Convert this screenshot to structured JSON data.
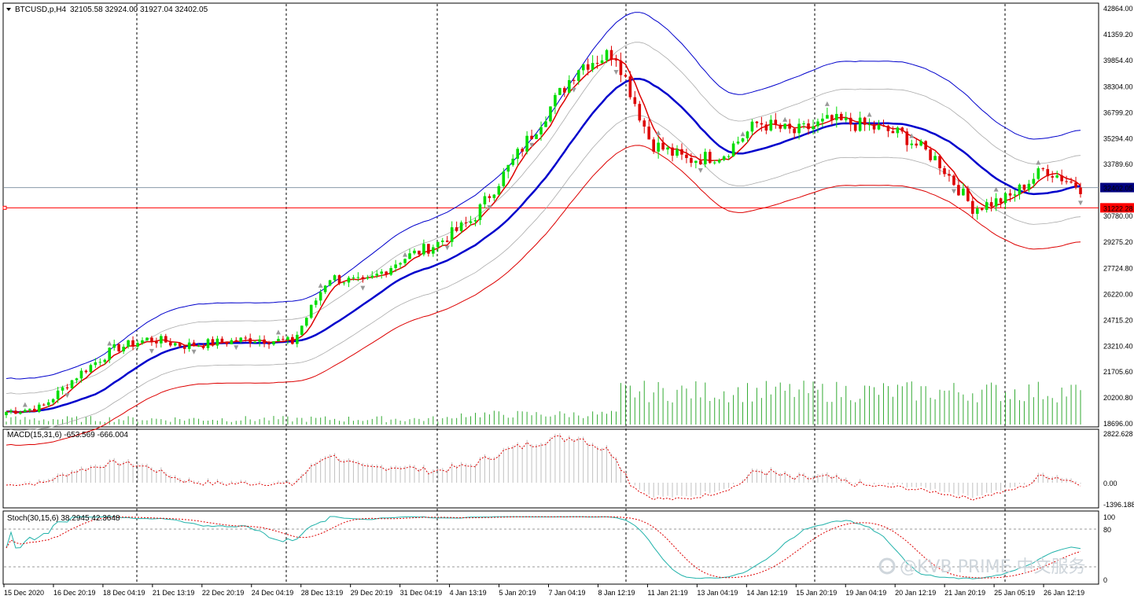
{
  "header": {
    "symbol_label": "BTCUSD,p,H4",
    "ohlc": "32105.58 32924.00 31927.04 32402.05"
  },
  "indicators": {
    "macd_label": "MACD(15,31,6) -653.569 -666.004",
    "stoch_label": "Stoch(30,15,6) 38.2945 42.3648"
  },
  "watermark": "@KVB PRIME 中文服务",
  "colors": {
    "bull_candle": "#00dd00",
    "bear_candle": "#dd0000",
    "ma_fast": "#dd0000",
    "ma_slow": "#0000cc",
    "macd_signal": "#dd0000",
    "stoch_main": "#20b2aa",
    "stoch_signal": "#dd0000",
    "volume": "#33aa33",
    "current_price_line": "#8899aa",
    "level_line": "#ff0000"
  },
  "chart_data": [
    {
      "type": "candlestick",
      "title": "BTCUSD,p,H4",
      "price_axis_ticks": [
        "42864.00",
        "41359.20",
        "39854.40",
        "38304.00",
        "36799.20",
        "35294.40",
        "33789.60",
        "32402.05",
        "31222.28",
        "30780.00",
        "29275.20",
        "27724.80",
        "26220.00",
        "24715.20",
        "23210.40",
        "21705.60",
        "20200.80",
        "18696.00"
      ],
      "current_price": 32402.05,
      "level_line": 31222.28,
      "ylim": [
        18696.0,
        42864.0
      ],
      "time_axis_ticks": [
        "15 Dec 2020",
        "16 Dec 20:19",
        "18 Dec 04:19",
        "21 Dec 13:19",
        "22 Dec 20:19",
        "24 Dec 04:19",
        "28 Dec 13:19",
        "29 Dec 20:19",
        "31 Dec 04:19",
        "4 Jan 13:19",
        "5 Jan 20:19",
        "7 Jan 04:19",
        "8 Jan 12:19",
        "11 Jan 21:19",
        "13 Jan 04:19",
        "14 Jan 12:19",
        "15 Jan 20:19",
        "19 Jan 04:19",
        "20 Jan 12:19",
        "21 Jan 20:19",
        "25 Jan 05:19",
        "26 Jan 12:19"
      ],
      "ohlc_anchor_closes": [
        19350,
        19600,
        21500,
        23000,
        23600,
        23200,
        23400,
        23600,
        23400,
        27200,
        26800,
        28200,
        29100,
        30500,
        33500,
        36500,
        39500,
        40300,
        35000,
        34000,
        34300,
        36200,
        35600,
        36300,
        36000,
        35500,
        34000,
        31200,
        31800,
        33500,
        32402
      ]
    },
    {
      "type": "bar",
      "title": "MACD(15,31,6) -653.569 -666.004",
      "ylim": [
        -1396.188,
        2822.628
      ],
      "axis_ticks": [
        "2822.628",
        "0.00",
        "-1396.188"
      ]
    },
    {
      "type": "line",
      "title": "Stoch(30,15,6) 38.2945 42.3648",
      "ylim": [
        0,
        100
      ],
      "axis_ticks": [
        "100",
        "80",
        "0"
      ],
      "levels": [
        80,
        20
      ]
    }
  ]
}
